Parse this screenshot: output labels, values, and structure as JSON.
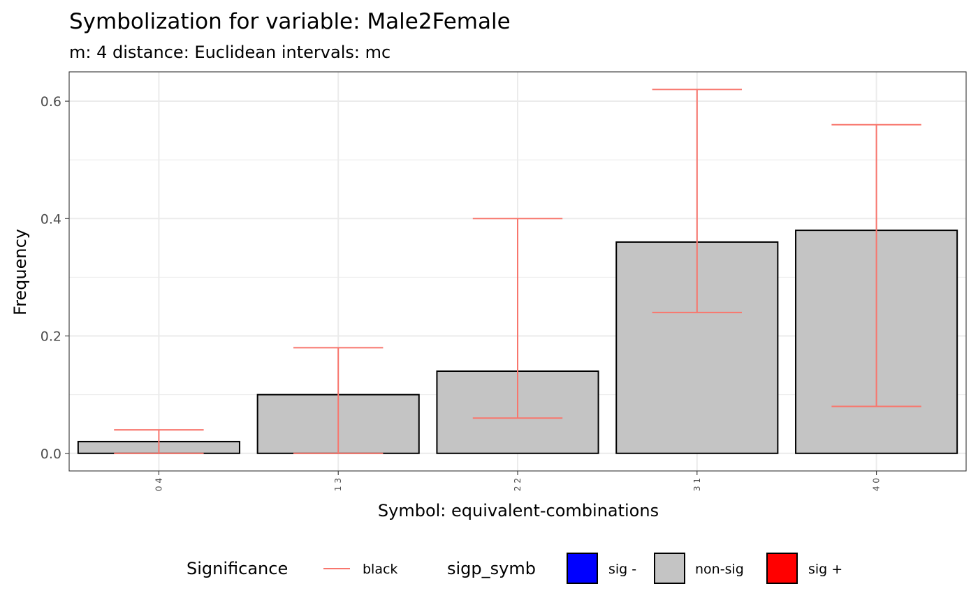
{
  "chart_data": {
    "type": "bar",
    "title": "Symbolization for variable: Male2Female",
    "subtitle": "m: 4  distance:  Euclidean  intervals:  mc",
    "xlabel": "Symbol: equivalent-combinations",
    "ylabel": "Frequency",
    "categories": [
      "0 4",
      "1 3",
      "2 2",
      "3 1",
      "4 0"
    ],
    "values": [
      0.02,
      0.1,
      0.14,
      0.36,
      0.38
    ],
    "error_low": [
      0.0,
      0.0,
      0.06,
      0.24,
      0.08
    ],
    "error_high": [
      0.04,
      0.18,
      0.4,
      0.62,
      0.56
    ],
    "bar_fill": "#C4C4C4",
    "bar_stroke": "#000000",
    "error_color": "#F8766D",
    "ylim": [
      -0.03,
      0.65
    ],
    "yticks": [
      0.0,
      0.2,
      0.4,
      0.6
    ],
    "ytick_labels": [
      "0.0",
      "0.2",
      "0.4",
      "0.6"
    ],
    "grid": true,
    "legend_position": "bottom",
    "legend": {
      "significance_title": "Significance",
      "significance_label": "black",
      "sigp_title": "sigp_symb",
      "items": [
        {
          "label": "sig -",
          "color": "#0000FF"
        },
        {
          "label": "non-sig",
          "color": "#C4C4C4"
        },
        {
          "label": "sig +",
          "color": "#FF0000"
        }
      ]
    }
  }
}
